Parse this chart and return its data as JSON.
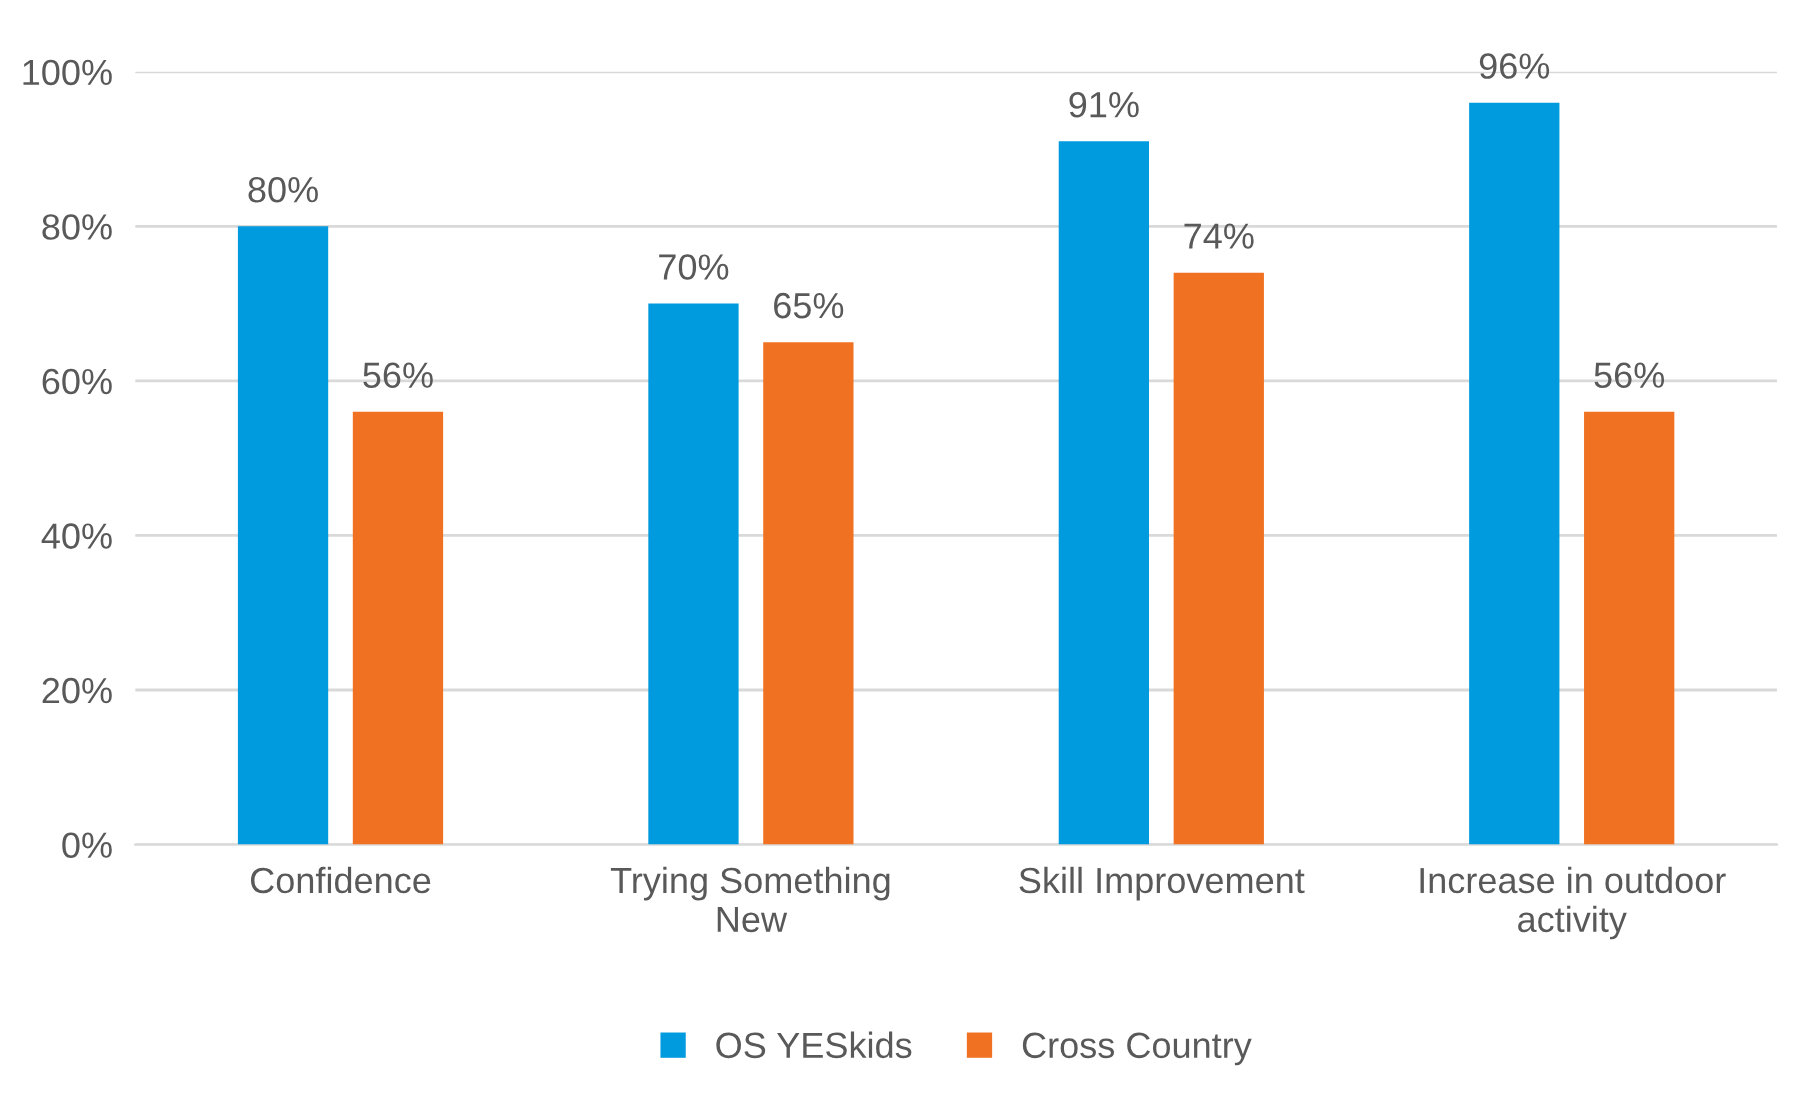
{
  "chart_data": {
    "type": "bar",
    "categories": [
      "Confidence",
      "Trying Something\nNew",
      "Skill Improvement",
      "Increase in outdoor\nactivity"
    ],
    "series": [
      {
        "name": "OS YESkids",
        "color": "#009ade",
        "values": [
          80,
          70,
          91,
          96
        ],
        "value_labels": [
          "80%",
          "70%",
          "91%",
          "96%"
        ]
      },
      {
        "name": "Cross Country",
        "color": "#f07122",
        "values": [
          56,
          65,
          74,
          56
        ],
        "value_labels": [
          "56%",
          "65%",
          "74%",
          "56%"
        ]
      }
    ],
    "ylim": [
      0,
      100
    ],
    "yticks": [
      {
        "value": 0,
        "label": "0%"
      },
      {
        "value": 20,
        "label": "20%"
      },
      {
        "value": 40,
        "label": "40%"
      },
      {
        "value": 60,
        "label": "60%"
      },
      {
        "value": 80,
        "label": "80%"
      },
      {
        "value": 100,
        "label": "100%"
      }
    ],
    "grid": "y",
    "legend": "bottom"
  }
}
